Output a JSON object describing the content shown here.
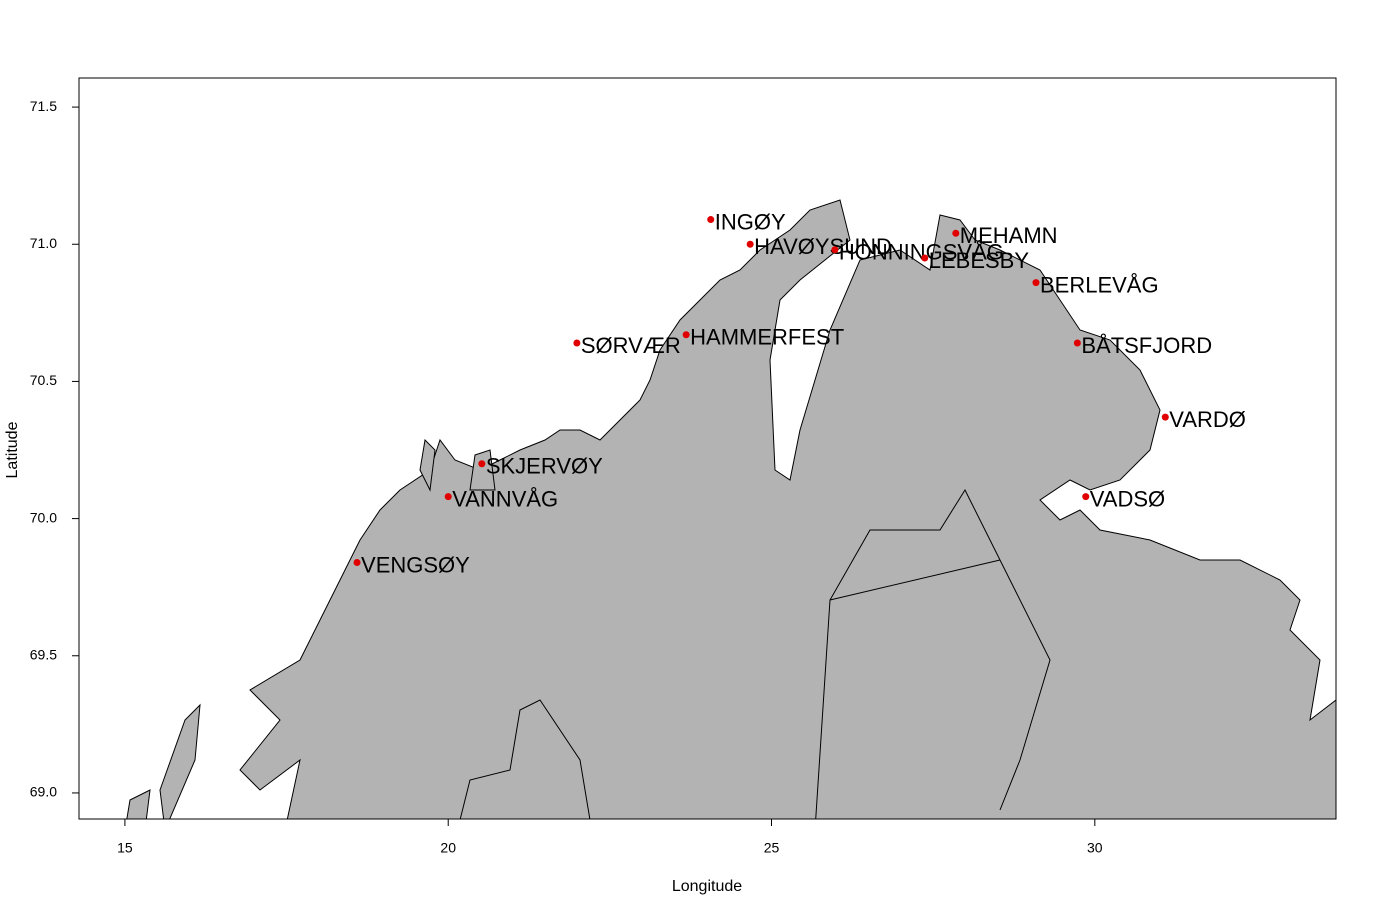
{
  "chart_data": {
    "type": "scatter",
    "x_label": "Longitude",
    "y_label": "Latitude",
    "point_labels": [
      "INGØY",
      "HAVØYSUND",
      "HONNINGSVÅG",
      "MEHAMN",
      "LEBESBY",
      "BERLEVÅG",
      "BÅTSFJORD",
      "VARDØ",
      "VADSØ",
      "HAMMERFEST",
      "SØRVÆR",
      "SKJERVØY",
      "VANNVÅG",
      "VENGSØY"
    ],
    "x": [
      24.06,
      24.67,
      25.98,
      27.85,
      27.37,
      29.09,
      29.73,
      31.09,
      29.86,
      23.68,
      21.99,
      20.52,
      20.0,
      18.59
    ],
    "y": [
      71.09,
      71.0,
      70.98,
      71.04,
      70.95,
      70.86,
      70.64,
      70.37,
      70.08,
      70.67,
      70.64,
      70.2,
      70.08,
      69.84
    ],
    "color": "#e00000",
    "xlim": [
      14.29,
      33.73
    ],
    "ylim": [
      68.905,
      71.606
    ],
    "xticks": [
      15,
      20,
      25,
      30
    ],
    "yticks": [
      {
        "value": 69,
        "label": "69.0"
      },
      69.5,
      {
        "value": 70,
        "label": "70.0"
      },
      70.5,
      {
        "value": 71,
        "label": "71.0"
      },
      71.5
    ]
  }
}
